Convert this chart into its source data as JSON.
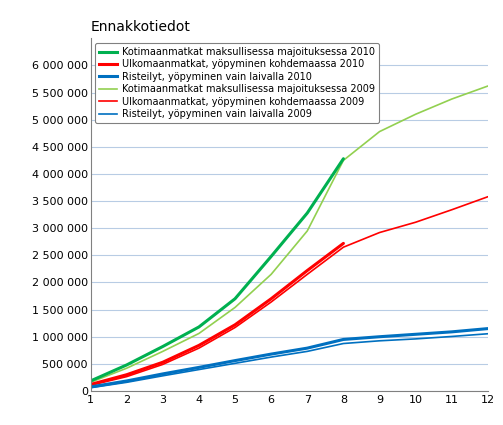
{
  "title": "Ennakkotiedot",
  "x_ticks": [
    1,
    2,
    3,
    4,
    5,
    6,
    7,
    8,
    9,
    10,
    11,
    12
  ],
  "ylim": [
    0,
    6500000
  ],
  "yticks": [
    0,
    500000,
    1000000,
    1500000,
    2000000,
    2500000,
    3000000,
    3500000,
    4000000,
    4500000,
    5000000,
    5500000,
    6000000
  ],
  "series_order": [
    "koti_2009",
    "ulko_2009",
    "rist_2009",
    "koti_2010",
    "ulko_2010",
    "rist_2010"
  ],
  "legend_order": [
    "koti_2010",
    "ulko_2010",
    "rist_2010",
    "koti_2009",
    "ulko_2009",
    "rist_2009"
  ],
  "series": {
    "koti_2010": {
      "label": "Kotimaanmatkat maksullisessa majoituksessa 2010",
      "color": "#00b050",
      "linewidth": 2.2,
      "x": [
        1,
        2,
        3,
        4,
        5,
        6,
        7,
        8
      ],
      "y": [
        185000,
        480000,
        820000,
        1180000,
        1700000,
        2480000,
        3280000,
        4280000
      ]
    },
    "ulko_2010": {
      "label": "Ulkomaanmatkat, yöpyminen kohdemaassa 2010",
      "color": "#ff0000",
      "linewidth": 2.2,
      "x": [
        1,
        2,
        3,
        4,
        5,
        6,
        7,
        8
      ],
      "y": [
        120000,
        300000,
        530000,
        840000,
        1220000,
        1700000,
        2220000,
        2720000
      ]
    },
    "rist_2010": {
      "label": "Risteilyt, yöpyminen vain laivalla 2010",
      "color": "#0070c0",
      "linewidth": 2.2,
      "x": [
        1,
        2,
        3,
        4,
        5,
        6,
        7,
        8,
        9,
        10,
        11,
        12
      ],
      "y": [
        75000,
        185000,
        315000,
        435000,
        560000,
        680000,
        790000,
        950000,
        1000000,
        1045000,
        1090000,
        1150000
      ]
    },
    "koti_2009": {
      "label": "Kotimaanmatkat maksullisessa majoituksessa 2009",
      "color": "#92d050",
      "linewidth": 1.2,
      "x": [
        1,
        2,
        3,
        4,
        5,
        6,
        7,
        8,
        9,
        10,
        11,
        12
      ],
      "y": [
        160000,
        420000,
        730000,
        1060000,
        1540000,
        2150000,
        2950000,
        4250000,
        4780000,
        5100000,
        5380000,
        5620000
      ]
    },
    "ulko_2009": {
      "label": "Ulkomaanmatkat, yöpyminen kohdemaassa 2009",
      "color": "#ff0000",
      "linewidth": 1.2,
      "x": [
        1,
        2,
        3,
        4,
        5,
        6,
        7,
        8,
        9,
        10,
        11,
        12
      ],
      "y": [
        105000,
        265000,
        490000,
        790000,
        1170000,
        1640000,
        2150000,
        2650000,
        2920000,
        3110000,
        3340000,
        3580000
      ]
    },
    "rist_2009": {
      "label": "Risteilyt, yöpyminen vain laivalla 2009",
      "color": "#0070c0",
      "linewidth": 1.2,
      "x": [
        1,
        2,
        3,
        4,
        5,
        6,
        7,
        8,
        9,
        10,
        11,
        12
      ],
      "y": [
        60000,
        160000,
        280000,
        395000,
        510000,
        625000,
        730000,
        875000,
        925000,
        960000,
        1005000,
        1055000
      ]
    }
  },
  "background_color": "#ffffff",
  "plot_bg_color": "#ffffff",
  "grid_color": "#b8cce4",
  "legend_fontsize": 7.0,
  "title_fontsize": 10,
  "tick_fontsize": 8
}
